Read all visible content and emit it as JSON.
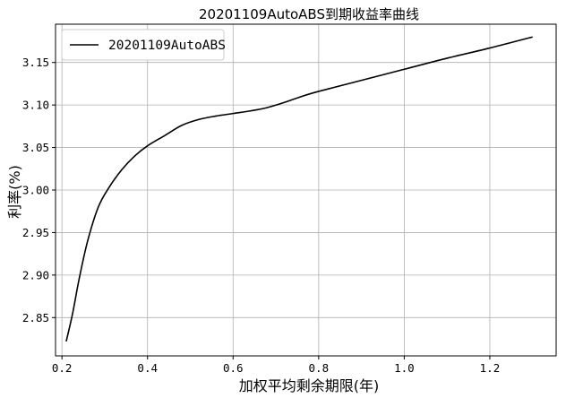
{
  "chart_data": {
    "type": "line",
    "title": "20201109AutoABS到期收益率曲线",
    "xlabel": "加权平均剩余期限(年)",
    "ylabel": "利率(%)",
    "xlim": [
      0.185,
      1.355
    ],
    "ylim": [
      2.805,
      3.195
    ],
    "xticks": [
      0.2,
      0.4,
      0.6,
      0.8,
      1.0,
      1.2
    ],
    "xtick_labels": [
      "0.2",
      "0.4",
      "0.6",
      "0.8",
      "1.0",
      "1.2"
    ],
    "yticks": [
      2.85,
      2.9,
      2.95,
      3.0,
      3.05,
      3.1,
      3.15
    ],
    "ytick_labels": [
      "2.85",
      "2.90",
      "2.95",
      "3.00",
      "3.05",
      "3.10",
      "3.15"
    ],
    "grid": true,
    "legend_position": "top-left",
    "series": [
      {
        "name": "20201109AutoABS",
        "color": "#000000",
        "x": [
          0.21,
          0.225,
          0.24,
          0.26,
          0.285,
          0.31,
          0.34,
          0.37,
          0.4,
          0.44,
          0.48,
          0.52,
          0.56,
          0.6,
          0.64,
          0.68,
          0.72,
          0.76,
          0.8,
          0.9,
          1.0,
          1.1,
          1.2,
          1.3
        ],
        "y": [
          2.822,
          2.855,
          2.895,
          2.94,
          2.98,
          3.003,
          3.024,
          3.04,
          3.052,
          3.064,
          3.076,
          3.083,
          3.087,
          3.09,
          3.093,
          3.097,
          3.103,
          3.11,
          3.116,
          3.129,
          3.142,
          3.155,
          3.167,
          3.18
        ]
      }
    ]
  }
}
